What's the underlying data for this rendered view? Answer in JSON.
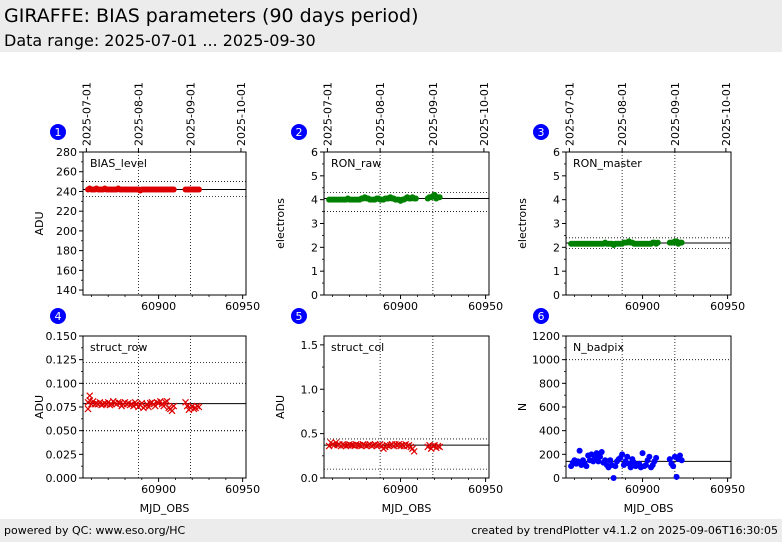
{
  "header": {
    "title": "GIRAFFE: BIAS parameters (90 days period)",
    "subtitle": "Data range: 2025-07-01 ... 2025-09-30"
  },
  "footer": {
    "left": "powered by QC: www.eso.org/HC",
    "right": "created by trendPlotter v4.1.2 on 2025-09-06T16:30:05"
  },
  "colors": {
    "red": "#dd0000",
    "green": "#008000",
    "blue": "#0000ff",
    "badge": "#0000ff"
  },
  "chart_data": [
    {
      "type": "scatter",
      "badge": "1",
      "label": "BIAS_level",
      "ylabel": "ADU",
      "xlabel": "",
      "xlim": [
        60855,
        60952
      ],
      "ylim": [
        135,
        280
      ],
      "yticks": [
        140,
        160,
        180,
        200,
        220,
        240,
        260,
        280
      ],
      "xticks": [
        60900,
        60950
      ],
      "show_xtick_labels": true,
      "date_ticks": [
        "2025-07-01",
        "2025-08-01",
        "2025-09-01",
        "2025-10-01"
      ],
      "date_mjd": [
        60857,
        60888,
        60919,
        60949
      ],
      "grid_x_mjd": [
        60888,
        60919
      ],
      "grid_y": [],
      "ref_line": 242,
      "ref_dotted": [
        250,
        235
      ],
      "marker": "dot",
      "color_key": "red",
      "x": [
        60858,
        60859,
        60860,
        60861,
        60862,
        60863,
        60864,
        60865,
        60866,
        60867,
        60868,
        60869,
        60870,
        60871,
        60872,
        60873,
        60874,
        60875,
        60876,
        60877,
        60878,
        60879,
        60880,
        60881,
        60882,
        60883,
        60884,
        60885,
        60886,
        60887,
        60888,
        60889,
        60890,
        60891,
        60892,
        60893,
        60894,
        60895,
        60896,
        60897,
        60898,
        60899,
        60900,
        60901,
        60902,
        60903,
        60904,
        60905,
        60906,
        60907,
        60908,
        60909,
        60916,
        60917,
        60918,
        60919,
        60920,
        60921,
        60922,
        60923,
        60924
      ],
      "y": [
        242,
        243,
        242,
        242,
        242,
        243,
        242,
        242,
        242,
        242,
        243,
        242,
        242,
        242,
        242,
        242,
        242,
        242,
        243,
        242,
        242,
        242,
        242,
        242,
        242,
        242,
        242,
        242,
        242,
        242,
        242,
        241,
        242,
        242,
        242,
        242,
        242,
        242,
        242,
        242,
        242,
        242,
        242,
        242,
        242,
        242,
        242,
        242,
        242,
        242,
        242,
        242,
        242,
        242,
        242,
        242,
        242,
        242,
        242,
        242,
        242
      ]
    },
    {
      "type": "scatter",
      "badge": "2",
      "label": "RON_raw",
      "ylabel": "electrons",
      "xlabel": "",
      "xlim": [
        60855,
        60952
      ],
      "ylim": [
        0,
        6
      ],
      "yticks": [
        0.0,
        1.0,
        2.0,
        3.0,
        4.0,
        5.0,
        6.0
      ],
      "xticks": [
        60900,
        60950
      ],
      "show_xtick_labels": true,
      "date_ticks": [
        "2025-07-01",
        "2025-08-01",
        "2025-09-01",
        "2025-10-01"
      ],
      "date_mjd": [
        60857,
        60888,
        60919,
        60949
      ],
      "grid_x_mjd": [
        60888,
        60919
      ],
      "grid_y": [],
      "ref_line": 4.05,
      "ref_dotted": [
        4.3,
        3.5
      ],
      "marker": "dot",
      "color_key": "green",
      "x": [
        60858,
        60859,
        60860,
        60861,
        60862,
        60863,
        60864,
        60865,
        60866,
        60867,
        60868,
        60869,
        60870,
        60871,
        60872,
        60873,
        60874,
        60875,
        60876,
        60877,
        60878,
        60879,
        60880,
        60881,
        60882,
        60883,
        60884,
        60885,
        60886,
        60887,
        60888,
        60889,
        60890,
        60891,
        60892,
        60893,
        60894,
        60895,
        60896,
        60897,
        60898,
        60899,
        60900,
        60901,
        60902,
        60903,
        60904,
        60905,
        60906,
        60907,
        60908,
        60909,
        60916,
        60917,
        60918,
        60919,
        60920,
        60921,
        60922,
        60923
      ],
      "y": [
        4.0,
        4.0,
        4.0,
        4.0,
        4.0,
        4.0,
        4.0,
        4.0,
        4.0,
        4.0,
        4.0,
        4.05,
        4.0,
        4.0,
        4.0,
        4.0,
        4.0,
        4.0,
        4.0,
        4.05,
        4.05,
        4.1,
        4.05,
        4.05,
        4.0,
        4.0,
        4.0,
        4.0,
        4.05,
        4.05,
        4.0,
        4.0,
        4.0,
        4.05,
        4.05,
        4.05,
        4.1,
        4.05,
        4.05,
        4.0,
        4.0,
        4.0,
        3.95,
        4.0,
        4.0,
        4.05,
        4.1,
        4.05,
        4.05,
        4.1,
        4.05,
        4.05,
        4.05,
        4.1,
        4.1,
        4.15,
        4.2,
        4.05,
        4.1,
        4.1
      ]
    },
    {
      "type": "scatter",
      "badge": "3",
      "label": "RON_master",
      "ylabel": "electrons",
      "xlabel": "",
      "xlim": [
        60855,
        60952
      ],
      "ylim": [
        0,
        6
      ],
      "yticks": [
        0.0,
        1.0,
        2.0,
        3.0,
        4.0,
        5.0,
        6.0
      ],
      "xticks": [
        60900,
        60950
      ],
      "show_xtick_labels": true,
      "date_ticks": [
        "2025-07-01",
        "2025-08-01",
        "2025-09-01",
        "2025-10-01"
      ],
      "date_mjd": [
        60857,
        60888,
        60919,
        60949
      ],
      "grid_x_mjd": [
        60888,
        60919
      ],
      "grid_y": [],
      "ref_line": 2.18,
      "ref_dotted": [
        2.4,
        1.95
      ],
      "marker": "dot",
      "color_key": "green",
      "x": [
        60858,
        60859,
        60860,
        60861,
        60862,
        60863,
        60864,
        60865,
        60866,
        60867,
        60868,
        60869,
        60870,
        60871,
        60872,
        60873,
        60874,
        60875,
        60876,
        60877,
        60878,
        60879,
        60880,
        60881,
        60882,
        60883,
        60884,
        60885,
        60886,
        60887,
        60888,
        60889,
        60890,
        60891,
        60892,
        60893,
        60894,
        60895,
        60896,
        60897,
        60898,
        60899,
        60900,
        60901,
        60902,
        60903,
        60904,
        60905,
        60906,
        60907,
        60908,
        60909,
        60916,
        60917,
        60918,
        60919,
        60920,
        60921,
        60922,
        60923
      ],
      "y": [
        2.15,
        2.15,
        2.15,
        2.15,
        2.15,
        2.15,
        2.15,
        2.15,
        2.15,
        2.15,
        2.15,
        2.15,
        2.15,
        2.15,
        2.15,
        2.15,
        2.15,
        2.15,
        2.15,
        2.15,
        2.2,
        2.15,
        2.15,
        2.15,
        2.15,
        2.1,
        2.15,
        2.15,
        2.15,
        2.15,
        2.15,
        2.2,
        2.2,
        2.2,
        2.25,
        2.2,
        2.2,
        2.15,
        2.15,
        2.15,
        2.15,
        2.15,
        2.15,
        2.15,
        2.15,
        2.15,
        2.15,
        2.15,
        2.2,
        2.2,
        2.15,
        2.2,
        2.2,
        2.2,
        2.2,
        2.25,
        2.25,
        2.15,
        2.2,
        2.2
      ]
    },
    {
      "type": "scatter",
      "badge": "4",
      "label": "struct_row",
      "ylabel": "ADU",
      "xlabel": "MJD_OBS",
      "xlim": [
        60855,
        60952
      ],
      "ylim": [
        0,
        0.15
      ],
      "yticks": [
        0.0,
        0.025,
        0.05,
        0.075,
        0.1,
        0.125,
        0.15
      ],
      "xticks": [
        60900,
        60950
      ],
      "show_xtick_labels": true,
      "date_ticks": [],
      "date_mjd": [],
      "grid_x_mjd": [
        60888,
        60919
      ],
      "grid_y": [
        0.05,
        0.1
      ],
      "ref_line": 0.0785,
      "ref_dotted": [
        0.122,
        0.05
      ],
      "marker": "cross",
      "color_key": "red",
      "x": [
        60858,
        60858,
        60859,
        60859,
        60860,
        60861,
        60862,
        60863,
        60864,
        60865,
        60866,
        60867,
        60868,
        60869,
        60870,
        60871,
        60872,
        60873,
        60874,
        60875,
        60876,
        60877,
        60878,
        60879,
        60880,
        60881,
        60882,
        60883,
        60884,
        60885,
        60886,
        60887,
        60888,
        60889,
        60890,
        60891,
        60892,
        60893,
        60894,
        60895,
        60896,
        60897,
        60898,
        60899,
        60900,
        60901,
        60902,
        60903,
        60904,
        60905,
        60906,
        60907,
        60908,
        60909,
        60916,
        60917,
        60918,
        60919,
        60920,
        60921,
        60922,
        60923,
        60924
      ],
      "y": [
        0.08,
        0.073,
        0.082,
        0.087,
        0.078,
        0.081,
        0.078,
        0.079,
        0.078,
        0.08,
        0.077,
        0.078,
        0.079,
        0.078,
        0.08,
        0.077,
        0.078,
        0.081,
        0.079,
        0.078,
        0.08,
        0.079,
        0.076,
        0.078,
        0.08,
        0.078,
        0.079,
        0.077,
        0.078,
        0.076,
        0.08,
        0.078,
        0.075,
        0.077,
        0.079,
        0.074,
        0.076,
        0.078,
        0.075,
        0.079,
        0.08,
        0.078,
        0.076,
        0.08,
        0.079,
        0.081,
        0.078,
        0.076,
        0.08,
        0.081,
        0.074,
        0.073,
        0.071,
        0.076,
        0.08,
        0.076,
        0.072,
        0.074,
        0.076,
        0.073,
        0.074,
        0.076,
        0.075
      ]
    },
    {
      "type": "scatter",
      "badge": "5",
      "label": "struct_col",
      "ylabel": "ADU",
      "xlabel": "MJD_OBS",
      "xlim": [
        60855,
        60952
      ],
      "ylim": [
        0,
        1.6
      ],
      "yticks": [
        0.0,
        0.5,
        1.0,
        1.5
      ],
      "xticks": [
        60900,
        60950
      ],
      "show_xtick_labels": true,
      "date_ticks": [],
      "date_mjd": [],
      "grid_x_mjd": [
        60888,
        60919
      ],
      "grid_y": [],
      "ref_line": 0.37,
      "ref_dotted": [
        0.44,
        0.1
      ],
      "marker": "cross",
      "color_key": "red",
      "x": [
        60858,
        60859,
        60860,
        60861,
        60862,
        60863,
        60864,
        60865,
        60866,
        60867,
        60868,
        60869,
        60870,
        60871,
        60872,
        60873,
        60874,
        60875,
        60876,
        60877,
        60878,
        60879,
        60880,
        60881,
        60882,
        60883,
        60884,
        60885,
        60886,
        60887,
        60888,
        60889,
        60890,
        60891,
        60892,
        60893,
        60894,
        60895,
        60896,
        60897,
        60898,
        60899,
        60900,
        60901,
        60902,
        60903,
        60904,
        60905,
        60906,
        60907,
        60908,
        60916,
        60917,
        60918,
        60919,
        60920,
        60921,
        60922,
        60923
      ],
      "y": [
        0.36,
        0.4,
        0.38,
        0.37,
        0.4,
        0.37,
        0.38,
        0.36,
        0.38,
        0.37,
        0.36,
        0.37,
        0.38,
        0.37,
        0.37,
        0.36,
        0.38,
        0.37,
        0.37,
        0.36,
        0.38,
        0.37,
        0.36,
        0.37,
        0.38,
        0.36,
        0.37,
        0.38,
        0.36,
        0.37,
        0.38,
        0.36,
        0.33,
        0.35,
        0.37,
        0.36,
        0.37,
        0.38,
        0.36,
        0.38,
        0.37,
        0.38,
        0.36,
        0.37,
        0.36,
        0.38,
        0.36,
        0.37,
        0.35,
        0.33,
        0.3,
        0.35,
        0.37,
        0.33,
        0.36,
        0.37,
        0.34,
        0.36,
        0.35
      ]
    },
    {
      "type": "scatter",
      "badge": "6",
      "label": "N_badpix",
      "ylabel": "N",
      "xlabel": "MJD_OBS",
      "xlim": [
        60855,
        60952
      ],
      "ylim": [
        0,
        1200
      ],
      "yticks": [
        0,
        200,
        400,
        600,
        800,
        1000,
        1200
      ],
      "xticks": [
        60900,
        60950
      ],
      "show_xtick_labels": true,
      "date_ticks": [],
      "date_mjd": [],
      "grid_x_mjd": [
        60888,
        60919
      ],
      "grid_y": [
        1000
      ],
      "ref_line": 140,
      "ref_dotted": [],
      "marker": "dot",
      "color_key": "blue",
      "x": [
        60858,
        60859,
        60860,
        60861,
        60862,
        60863,
        60864,
        60865,
        60866,
        60867,
        60868,
        60869,
        60870,
        60871,
        60872,
        60873,
        60874,
        60875,
        60876,
        60877,
        60878,
        60879,
        60880,
        60881,
        60882,
        60883,
        60884,
        60885,
        60886,
        60887,
        60888,
        60889,
        60890,
        60891,
        60892,
        60893,
        60894,
        60895,
        60896,
        60897,
        60898,
        60899,
        60900,
        60901,
        60902,
        60903,
        60904,
        60905,
        60906,
        60907,
        60908,
        60916,
        60917,
        60918,
        60919,
        60920,
        60921,
        60922,
        60923
      ],
      "y": [
        100,
        130,
        150,
        120,
        140,
        230,
        110,
        150,
        120,
        100,
        190,
        150,
        200,
        140,
        170,
        210,
        140,
        180,
        220,
        130,
        150,
        110,
        90,
        150,
        110,
        0,
        100,
        140,
        160,
        170,
        200,
        110,
        140,
        180,
        120,
        90,
        160,
        130,
        100,
        110,
        120,
        90,
        210,
        100,
        110,
        150,
        180,
        90,
        110,
        140,
        170,
        160,
        120,
        100,
        180,
        10,
        160,
        190,
        150
      ]
    }
  ]
}
